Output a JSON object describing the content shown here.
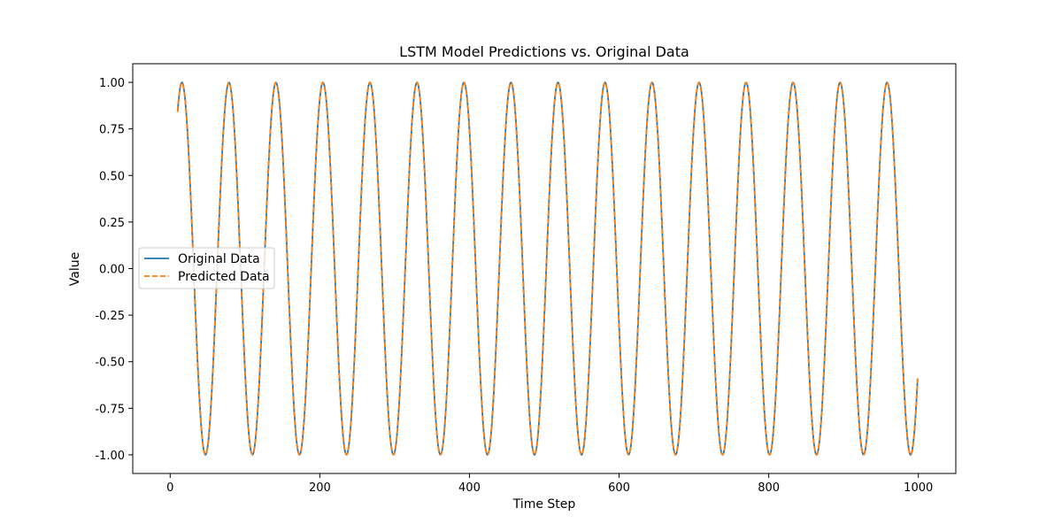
{
  "chart_data": {
    "type": "line",
    "title": "LSTM Model Predictions vs. Original Data",
    "xlabel": "Time Step",
    "ylabel": "Value",
    "xlim": [
      -50,
      1050
    ],
    "ylim": [
      -1.1,
      1.1
    ],
    "xticks": [
      0,
      200,
      400,
      600,
      800,
      1000
    ],
    "yticks": [
      -1.0,
      -0.75,
      -0.5,
      -0.25,
      0.0,
      0.25,
      0.5,
      0.75,
      1.0
    ],
    "x_range": [
      10,
      999
    ],
    "function": "sin(0.1*x)",
    "grid": false,
    "legend_position": "center-left",
    "series": [
      {
        "name": "Original Data",
        "color": "#1f77b4",
        "style": "solid"
      },
      {
        "name": "Predicted Data",
        "color": "#ff7f0e",
        "style": "dashed"
      }
    ]
  }
}
